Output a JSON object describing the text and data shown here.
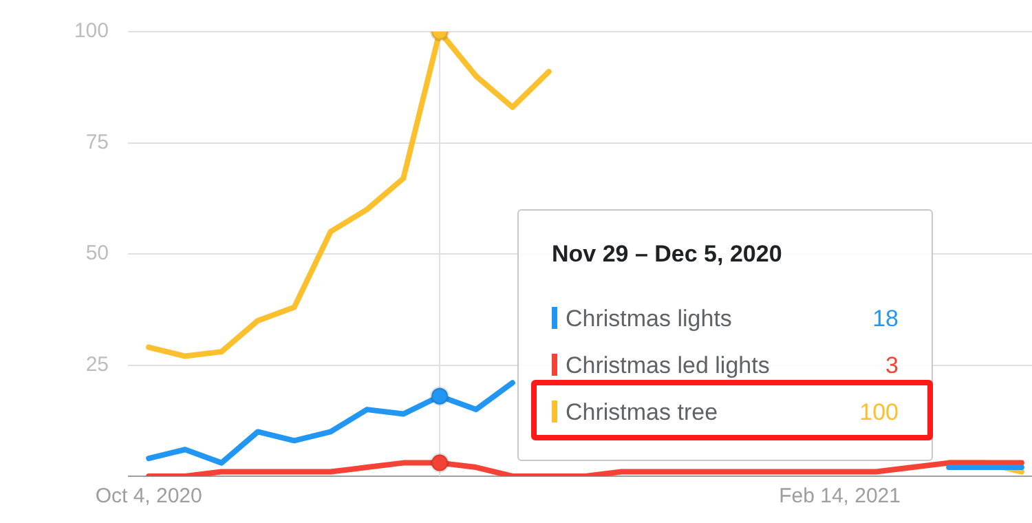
{
  "chart_data": {
    "type": "line",
    "x": [
      "2020-10-04",
      "2020-10-11",
      "2020-10-18",
      "2020-10-25",
      "2020-11-01",
      "2020-11-08",
      "2020-11-15",
      "2020-11-22",
      "2020-11-29",
      "2020-12-06",
      "2020-12-13",
      "2020-12-20",
      "2020-12-27",
      "2021-01-03",
      "2021-01-10",
      "2021-01-17",
      "2021-01-24",
      "2021-01-31",
      "2021-02-07",
      "2021-02-14",
      "2021-02-21",
      "2021-02-28",
      "2021-03-07",
      "2021-03-14",
      "2021-03-21"
    ],
    "series": [
      {
        "name": "Christmas lights",
        "color": "#2196f3",
        "values": [
          4,
          6,
          3,
          10,
          8,
          10,
          15,
          14,
          18,
          15,
          21,
          null,
          null,
          null,
          null,
          null,
          null,
          null,
          null,
          null,
          null,
          null,
          2,
          2,
          2
        ]
      },
      {
        "name": "Christmas led lights",
        "color": "#f44336",
        "values": [
          0,
          0,
          1,
          1,
          1,
          1,
          2,
          3,
          3,
          2,
          0,
          0,
          0,
          1,
          1,
          1,
          1,
          1,
          1,
          1,
          1,
          2,
          3,
          3,
          3
        ]
      },
      {
        "name": "Christmas tree",
        "color": "#fbc02d",
        "values": [
          29,
          27,
          28,
          35,
          38,
          55,
          60,
          67,
          100,
          90,
          83,
          91,
          null,
          null,
          null,
          null,
          null,
          null,
          null,
          null,
          null,
          null,
          3,
          3,
          1
        ]
      }
    ],
    "xlim": [
      "2020-09-30",
      "2021-03-23"
    ],
    "xticks": [
      {
        "value": "2020-10-04",
        "label": "Oct 4, 2020"
      },
      {
        "value": "2021-02-14",
        "label": "Feb 14, 2021"
      }
    ],
    "ylim": [
      0,
      100
    ],
    "yticks": [
      {
        "value": 0,
        "label": null
      },
      25,
      50,
      75,
      100
    ],
    "grid": "y",
    "legend": "right",
    "ref_lines": [
      {
        "axis": "x",
        "value": "2020-11-29",
        "color": "#e0e0e0"
      }
    ],
    "annotations": [
      "Nov 29 – Dec 5, 2020",
      "18",
      "3",
      "100"
    ]
  }
}
